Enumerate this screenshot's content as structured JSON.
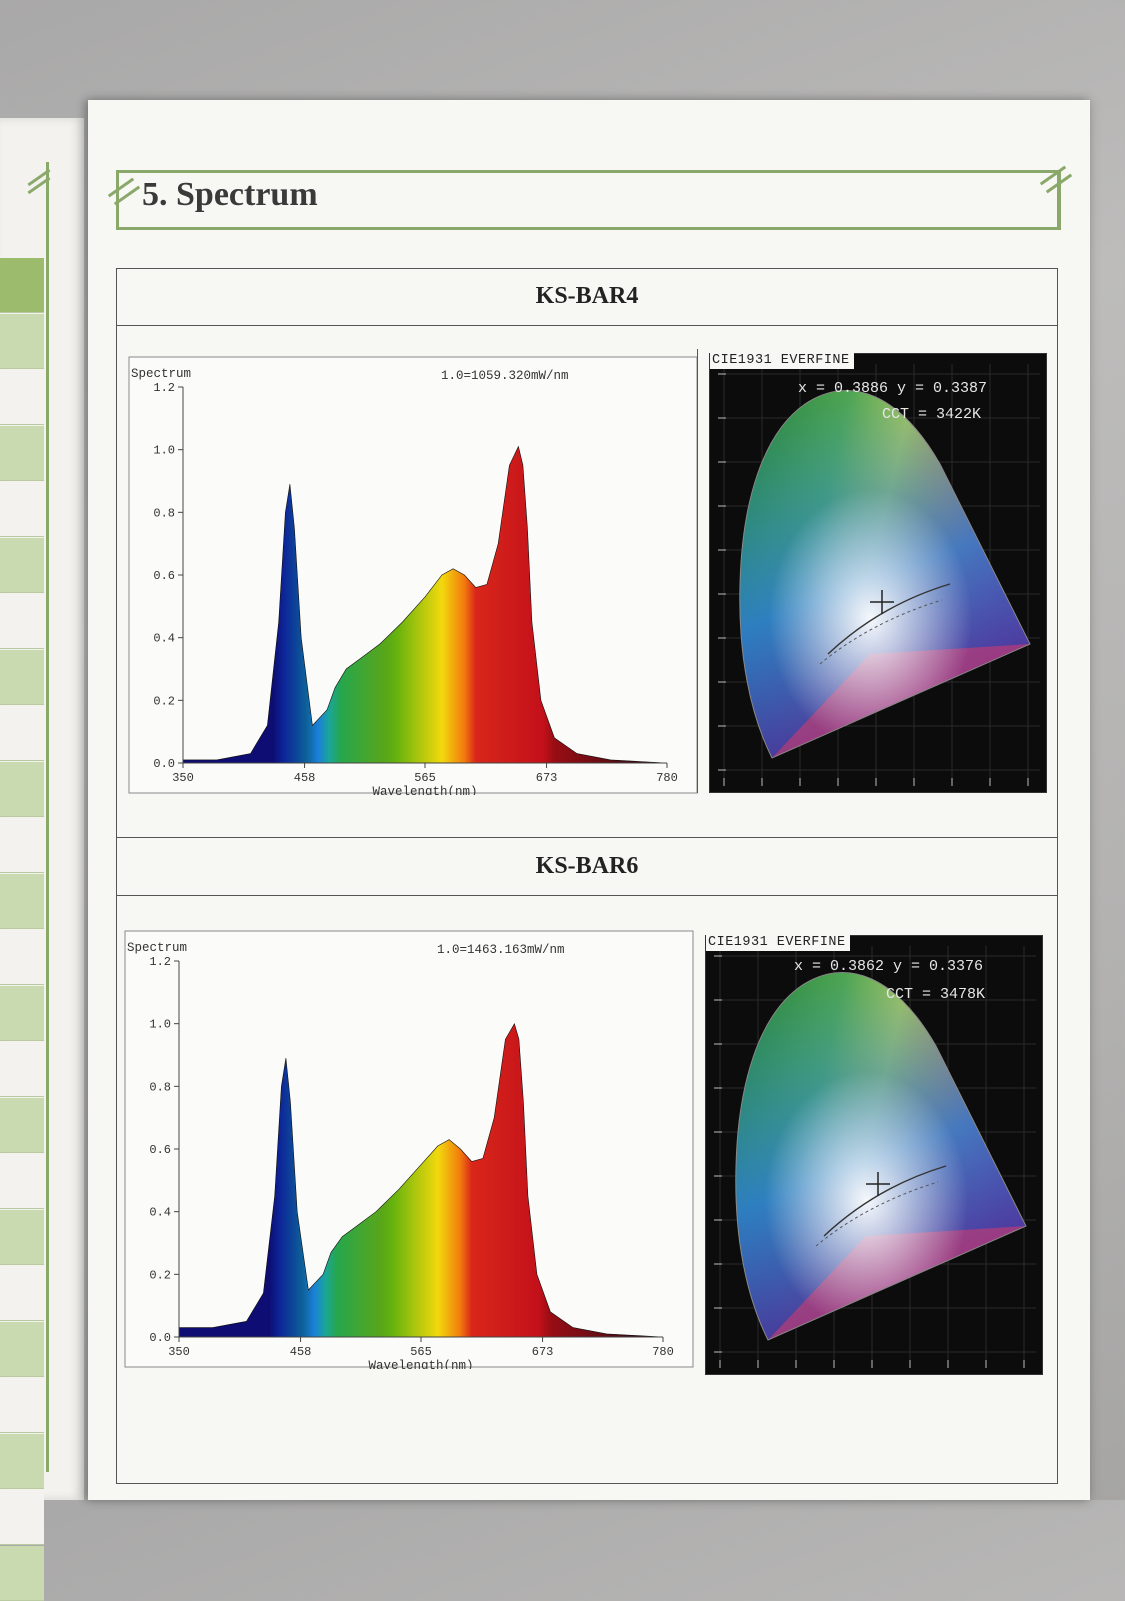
{
  "section_title": "5. Spectrum",
  "products": [
    {
      "model": "KS-BAR4",
      "spectrum": {
        "ylabel": "Spectrum",
        "scale_note": "1.0=1059.320mW/nm",
        "xlabel": "Wavelength(nm)"
      },
      "cie": {
        "title": "CIE1931 EVERFINE",
        "x": "0.3886",
        "y": "0.3387",
        "cct": "3422K",
        "coords_text": "x = 0.3886 y = 0.3387",
        "cct_text": "CCT = 3422K"
      }
    },
    {
      "model": "KS-BAR6",
      "spectrum": {
        "ylabel": "Spectrum",
        "scale_note": "1.0=1463.163mW/nm",
        "xlabel": "Wavelength(nm)"
      },
      "cie": {
        "title": "CIE1931 EVERFINE",
        "x": "0.3862",
        "y": "0.3376",
        "cct": "3478K",
        "coords_text": "x = 0.3862 y = 0.3376",
        "cct_text": "CCT = 3478K"
      }
    }
  ],
  "chart_data": [
    {
      "type": "area",
      "title": "",
      "ylabel": "Spectrum",
      "xlabel": "Wavelength(nm)",
      "xlim": [
        350,
        780
      ],
      "ylim": [
        0,
        1.2
      ],
      "xticks": [
        350,
        458,
        565,
        673,
        780
      ],
      "yticks": [
        "0.0",
        "0.2",
        "0.4",
        "0.6",
        "0.8",
        "1.0",
        "1.2"
      ],
      "grid": false,
      "x": [
        350,
        380,
        410,
        425,
        435,
        441,
        445,
        449,
        455,
        465,
        478,
        485,
        495,
        510,
        525,
        545,
        565,
        580,
        590,
        600,
        610,
        620,
        630,
        640,
        648,
        652,
        656,
        660,
        668,
        680,
        700,
        730,
        780
      ],
      "values": [
        0.01,
        0.01,
        0.03,
        0.12,
        0.45,
        0.8,
        0.89,
        0.75,
        0.4,
        0.12,
        0.17,
        0.24,
        0.3,
        0.34,
        0.38,
        0.45,
        0.53,
        0.6,
        0.62,
        0.6,
        0.56,
        0.57,
        0.7,
        0.95,
        1.01,
        0.95,
        0.75,
        0.45,
        0.2,
        0.08,
        0.03,
        0.01,
        0.0
      ]
    },
    {
      "type": "area",
      "title": "",
      "ylabel": "Spectrum",
      "xlabel": "Wavelength(nm)",
      "xlim": [
        350,
        780
      ],
      "ylim": [
        0,
        1.2
      ],
      "xticks": [
        350,
        458,
        565,
        673,
        780
      ],
      "yticks": [
        "0.0",
        "0.2",
        "0.4",
        "0.6",
        "0.8",
        "1.0",
        "1.2"
      ],
      "grid": false,
      "x": [
        350,
        380,
        410,
        425,
        435,
        441,
        445,
        449,
        455,
        465,
        478,
        485,
        495,
        510,
        525,
        545,
        565,
        580,
        590,
        600,
        610,
        620,
        630,
        640,
        648,
        652,
        656,
        660,
        668,
        680,
        700,
        730,
        780
      ],
      "values": [
        0.03,
        0.03,
        0.05,
        0.14,
        0.45,
        0.8,
        0.89,
        0.75,
        0.4,
        0.15,
        0.2,
        0.27,
        0.32,
        0.36,
        0.4,
        0.47,
        0.55,
        0.61,
        0.63,
        0.6,
        0.56,
        0.57,
        0.7,
        0.95,
        1.0,
        0.95,
        0.75,
        0.45,
        0.2,
        0.08,
        0.03,
        0.01,
        0.0
      ]
    }
  ]
}
